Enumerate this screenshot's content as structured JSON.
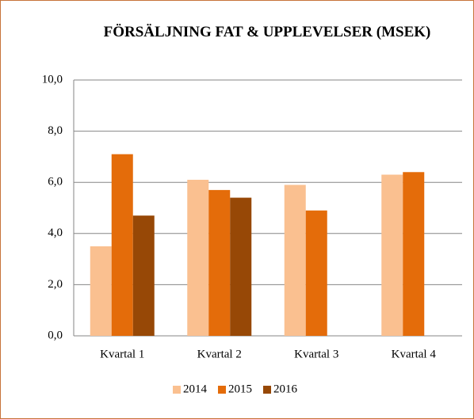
{
  "chart_data": {
    "type": "bar",
    "title": "FÖRSÄLJNING FAT & UPPLEVELSER (MSEK)",
    "categories": [
      "Kvartal 1",
      "Kvartal 2",
      "Kvartal 3",
      "Kvartal 4"
    ],
    "series": [
      {
        "name": "2014",
        "color": "#fac090",
        "values": [
          3.5,
          6.1,
          5.9,
          6.3
        ]
      },
      {
        "name": "2015",
        "color": "#e46c0a",
        "values": [
          7.1,
          5.7,
          4.9,
          6.4
        ]
      },
      {
        "name": "2016",
        "color": "#974806",
        "values": [
          4.7,
          5.4,
          null,
          null
        ]
      }
    ],
    "ylim": [
      0,
      10
    ],
    "yticks": [
      {
        "value": 0,
        "label": "0,0"
      },
      {
        "value": 2,
        "label": "2,0"
      },
      {
        "value": 4,
        "label": "4,0"
      },
      {
        "value": 6,
        "label": "6,0"
      },
      {
        "value": 8,
        "label": "8,0"
      },
      {
        "value": 10,
        "label": "10,0"
      }
    ],
    "grid": true,
    "legend": "bottom"
  }
}
